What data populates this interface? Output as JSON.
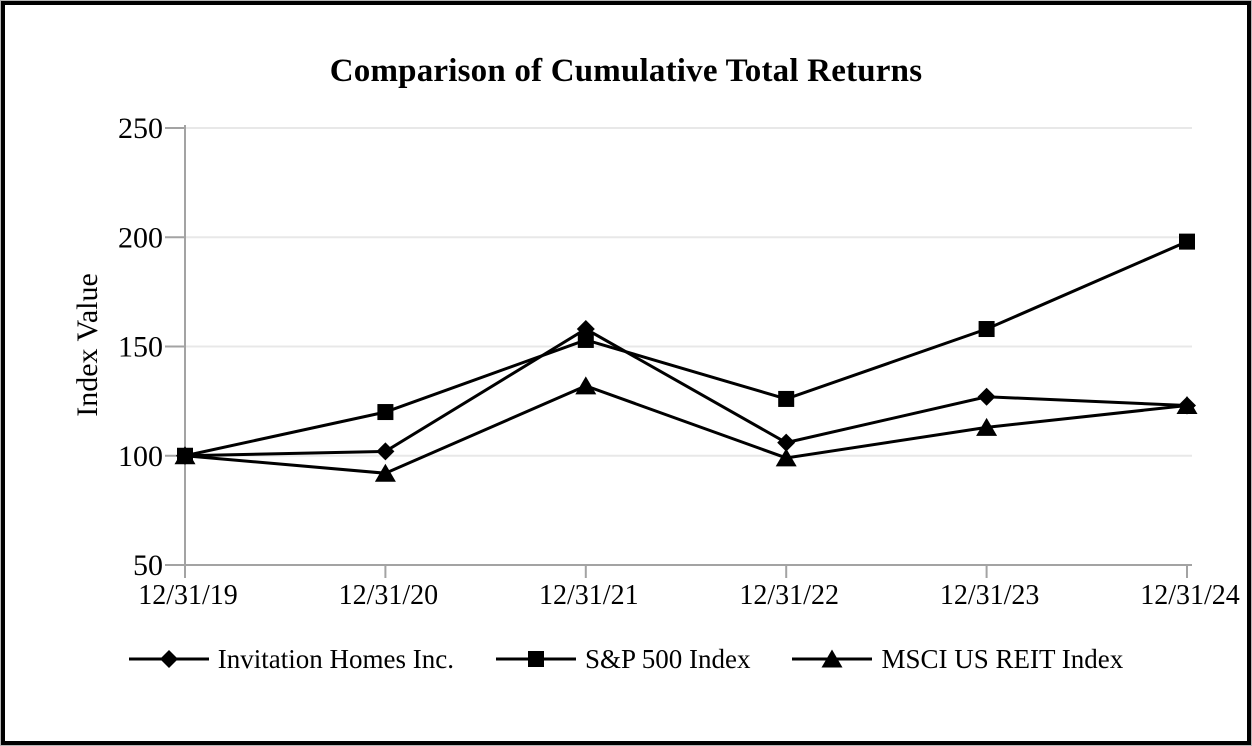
{
  "chart": {
    "title": "Comparison of Cumulative Total Returns",
    "ylabel": "Index Value"
  },
  "chart_data": {
    "type": "line",
    "title": "Comparison of Cumulative Total Returns",
    "xlabel": "",
    "ylabel": "Index Value",
    "categories": [
      "12/31/19",
      "12/31/20",
      "12/31/21",
      "12/31/22",
      "12/31/23",
      "12/31/24"
    ],
    "series": [
      {
        "name": "Invitation Homes Inc.",
        "marker": "diamond",
        "values": [
          100,
          102,
          158,
          106,
          127,
          123
        ]
      },
      {
        "name": "S&P 500 Index",
        "marker": "square",
        "values": [
          100,
          120,
          153,
          126,
          158,
          198
        ]
      },
      {
        "name": "MSCI US REIT Index",
        "marker": "triangle",
        "values": [
          100,
          92,
          132,
          99,
          113,
          123
        ]
      }
    ],
    "ylim": [
      50,
      250
    ],
    "yticks": [
      50,
      100,
      150,
      200,
      250
    ],
    "grid": "horizontal",
    "legend_position": "bottom",
    "colors": {
      "series": "#000000",
      "axis": "#a3a3a3",
      "gridline": "#e8e8e8",
      "text": "#000000"
    }
  }
}
